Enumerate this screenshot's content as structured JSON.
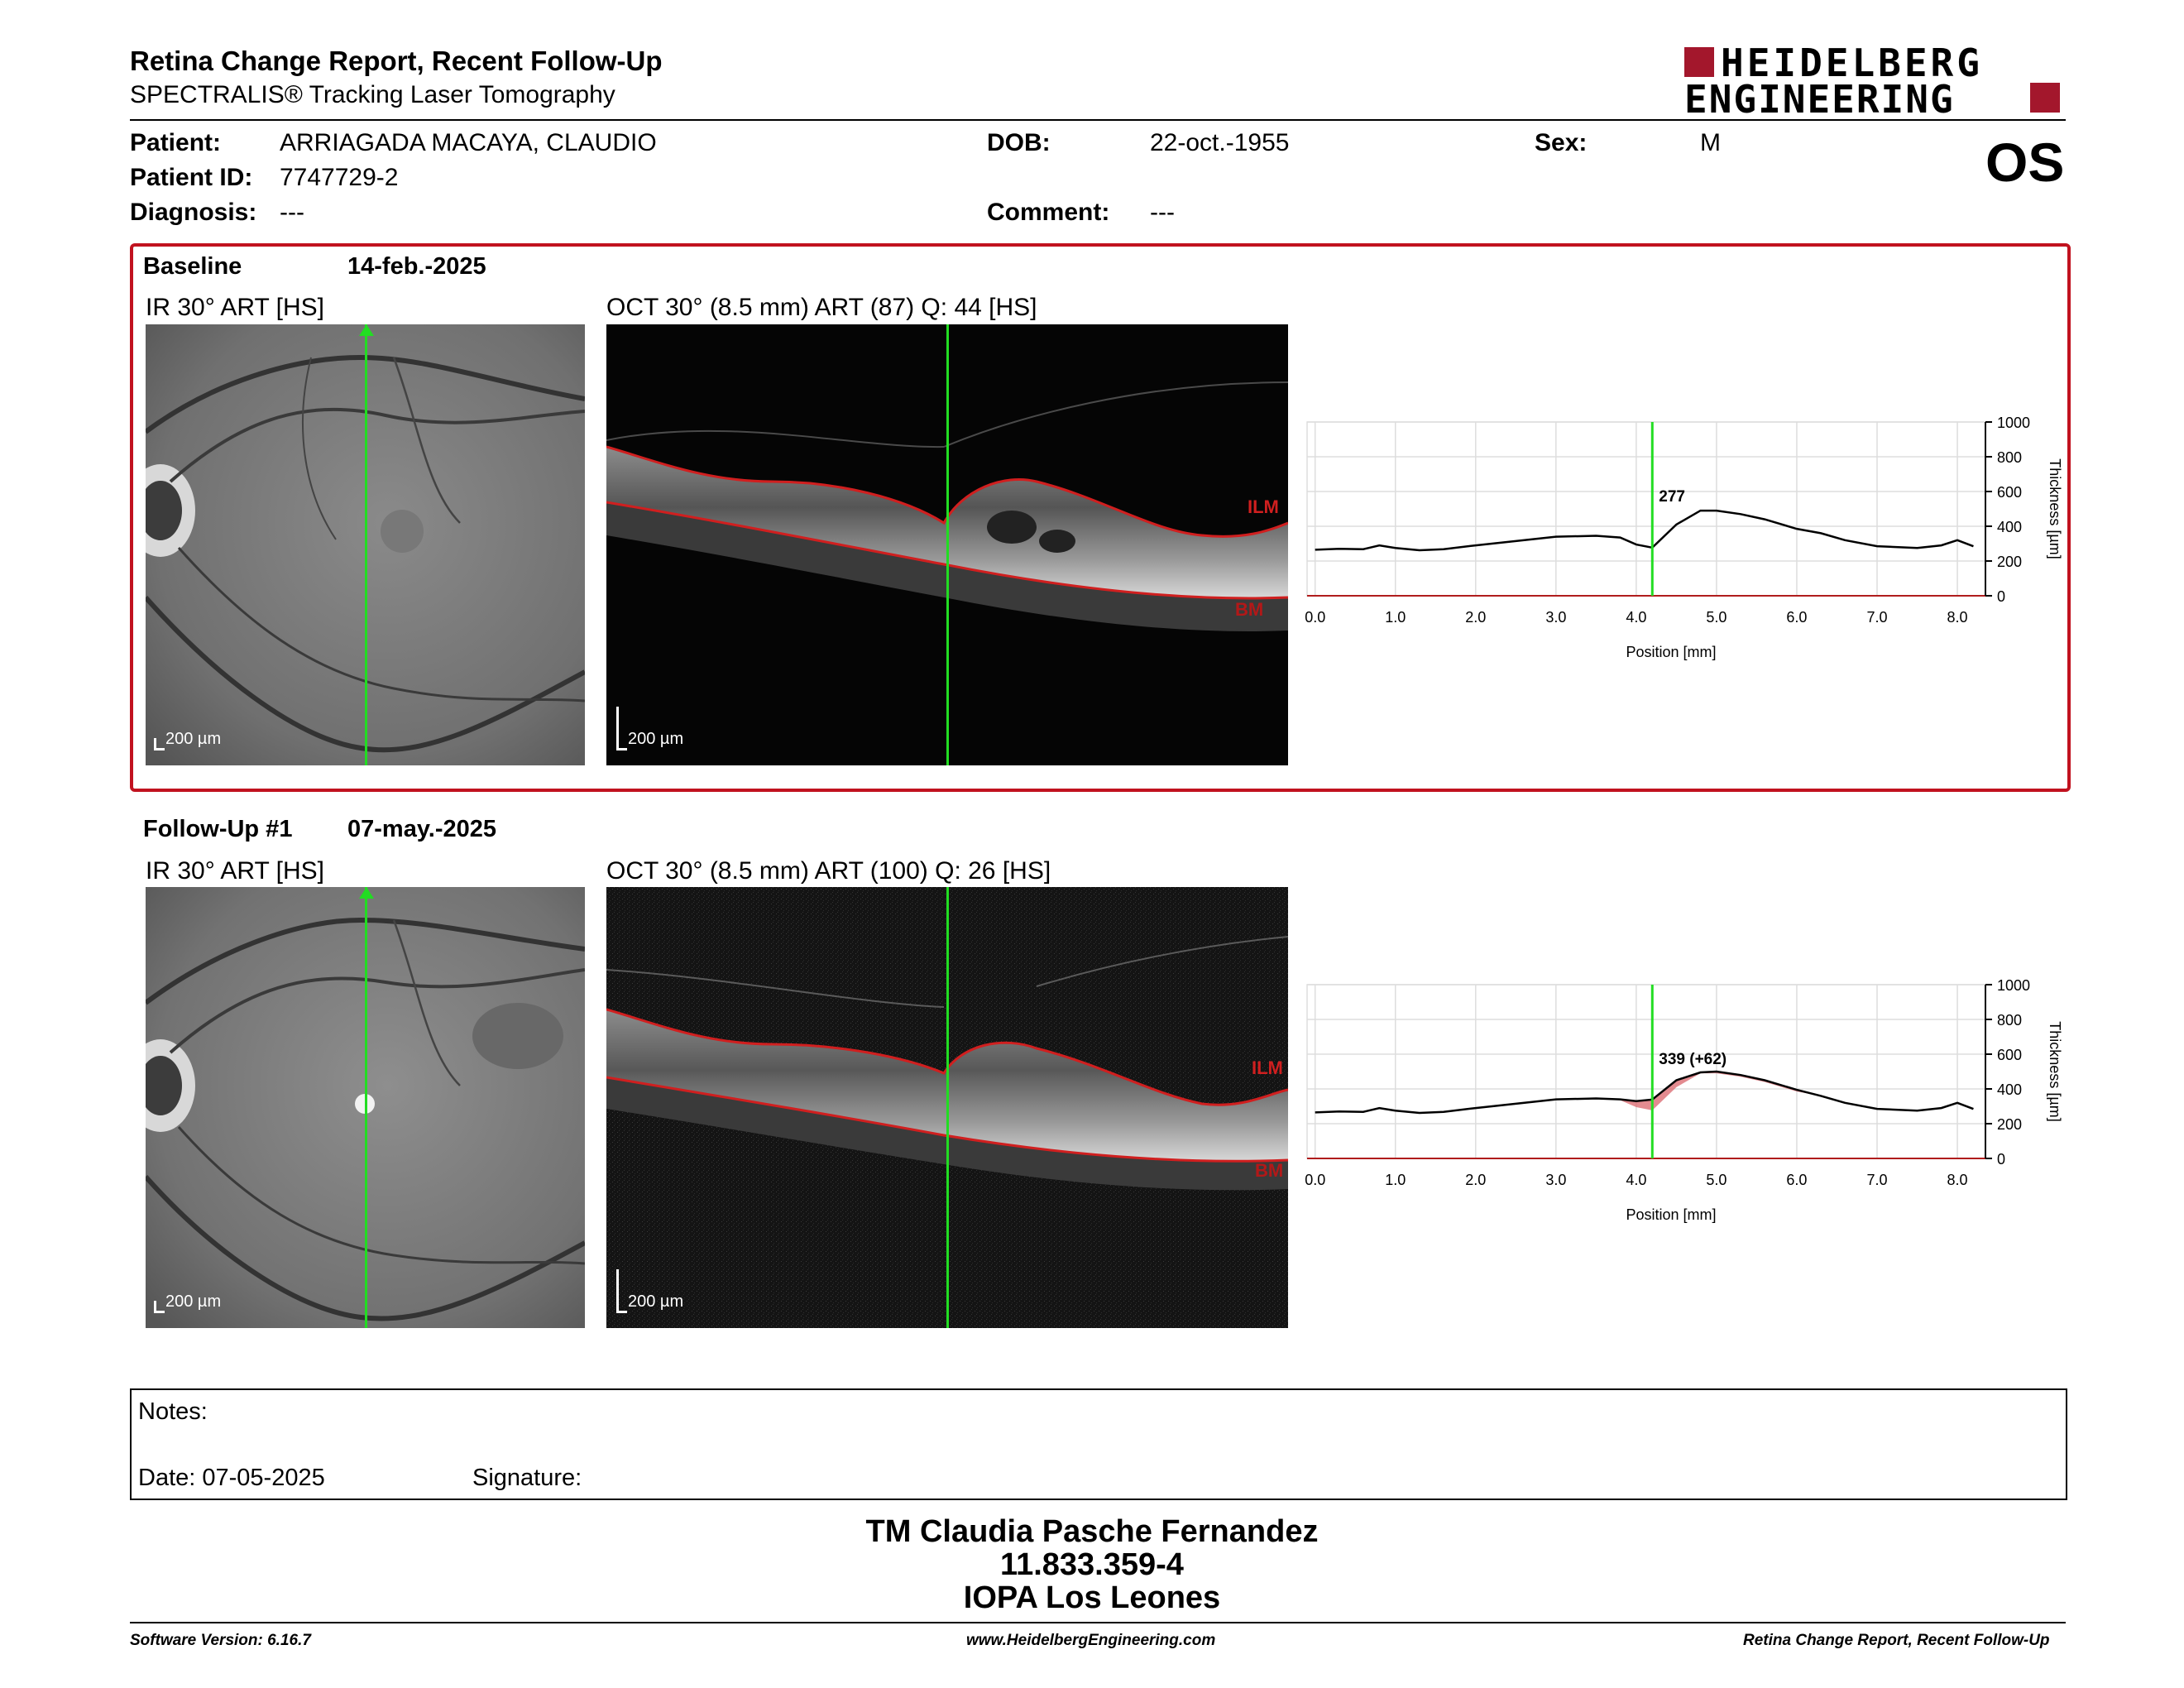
{
  "header": {
    "title": "Retina Change Report, Recent Follow-Up",
    "subtitle": "SPECTRALIS® Tracking Laser Tomography",
    "logo_line1": "HEIDELBERG",
    "logo_line2": "ENGINEERING",
    "eye": "OS"
  },
  "patient": {
    "patient_label": "Patient:",
    "patient_name": "ARRIAGADA MACAYA, CLAUDIO",
    "id_label": "Patient ID:",
    "id_value": "7747729-2",
    "diagnosis_label": "Diagnosis:",
    "diagnosis_value": "---",
    "dob_label": "DOB:",
    "dob_value": "22-oct.-1955",
    "comment_label": "Comment:",
    "comment_value": "---",
    "sex_label": "Sex:",
    "sex_value": "M"
  },
  "baseline": {
    "label": "Baseline",
    "date": "14-feb.-2025",
    "ir_label": "IR 30° ART [HS]",
    "oct_label": "OCT 30° (8.5 mm) ART (87) Q: 44 [HS]",
    "ir_scale": "200 µm",
    "oct_scale": "200 µm",
    "ilm": "ILM",
    "bm": "BM"
  },
  "followup": {
    "label": "Follow-Up #1",
    "date": "07-may.-2025",
    "ir_label": "IR 30° ART [HS]",
    "oct_label": "OCT 30° (8.5 mm) ART (100) Q: 26 [HS]",
    "ir_scale": "200 µm",
    "oct_scale": "200 µm",
    "ilm": "ILM",
    "bm": "BM"
  },
  "chart_data": [
    {
      "type": "line",
      "xlabel": "Position [mm]",
      "ylabel": "Thickness [µm]",
      "xlim": [
        -0.1,
        8.35
      ],
      "ylim": [
        0,
        1000
      ],
      "x_ticks": [
        "0.0",
        "1.0",
        "2.0",
        "3.0",
        "4.0",
        "5.0",
        "6.0",
        "7.0",
        "8.0"
      ],
      "y_ticks": [
        "0",
        "200",
        "400",
        "600",
        "800",
        "1000"
      ],
      "marker_x": 4.2,
      "marker_label": "277",
      "grid": true,
      "x": [
        0.0,
        0.3,
        0.6,
        0.8,
        1.0,
        1.3,
        1.6,
        2.0,
        2.5,
        3.0,
        3.5,
        3.8,
        4.0,
        4.2,
        4.5,
        4.8,
        5.0,
        5.3,
        5.6,
        6.0,
        6.3,
        6.6,
        7.0,
        7.5,
        7.8,
        8.0,
        8.2
      ],
      "y": [
        265,
        270,
        268,
        290,
        275,
        262,
        268,
        290,
        315,
        340,
        345,
        335,
        295,
        277,
        410,
        490,
        490,
        470,
        440,
        385,
        360,
        320,
        285,
        275,
        290,
        320,
        285
      ]
    },
    {
      "type": "line",
      "xlabel": "Position [mm]",
      "ylabel": "Thickness [µm]",
      "xlim": [
        -0.1,
        8.35
      ],
      "ylim": [
        0,
        1000
      ],
      "x_ticks": [
        "0.0",
        "1.0",
        "2.0",
        "3.0",
        "4.0",
        "5.0",
        "6.0",
        "7.0",
        "8.0"
      ],
      "y_ticks": [
        "0",
        "200",
        "400",
        "600",
        "800",
        "1000"
      ],
      "marker_x": 4.2,
      "marker_label": "339 (+62)",
      "grid": true,
      "x": [
        0.0,
        0.3,
        0.6,
        0.8,
        1.0,
        1.3,
        1.6,
        2.0,
        2.5,
        3.0,
        3.5,
        3.8,
        4.0,
        4.2,
        4.5,
        4.8,
        5.0,
        5.3,
        5.6,
        6.0,
        6.3,
        6.6,
        7.0,
        7.5,
        7.8,
        8.0,
        8.2
      ],
      "y": [
        265,
        270,
        268,
        290,
        275,
        262,
        268,
        290,
        315,
        340,
        345,
        340,
        330,
        339,
        450,
        495,
        500,
        480,
        450,
        395,
        360,
        320,
        285,
        275,
        290,
        320,
        285
      ]
    }
  ],
  "notes": {
    "notes_label": "Notes:",
    "date_label": "Date: 07-05-2025",
    "signature_label": "Signature:"
  },
  "footer": {
    "line1": "TM Claudia Pasche Fernandez",
    "line2": "11.833.359-4",
    "line3": "IOPA Los Leones",
    "software": "Software Version: 6.16.7",
    "website": "www.HeidelbergEngineering.com",
    "report": "Retina Change Report, Recent Follow-Up"
  },
  "colors": {
    "accent": "#a3172c",
    "marker": "#22dd22",
    "layer_line": "#d01f1f"
  }
}
